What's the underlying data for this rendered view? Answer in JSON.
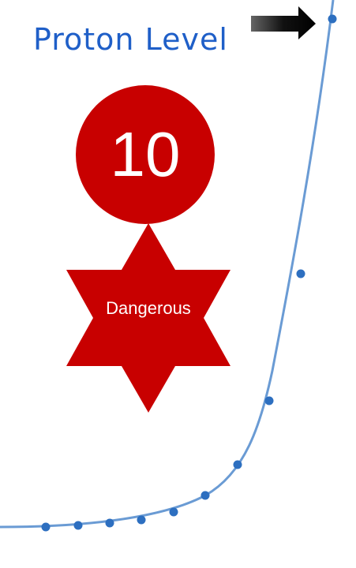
{
  "title": "Proton Level",
  "level": {
    "value": "10",
    "status": "Dangerous"
  },
  "colors": {
    "title": "#1f5fc8",
    "badge": "#c80000",
    "curve": "#6a9bd4",
    "points": "#2d6fc0",
    "arrow": "#1a1a1a"
  },
  "icons": {
    "arrow": "arrow-right-icon",
    "star": "six-point-star-icon"
  }
}
